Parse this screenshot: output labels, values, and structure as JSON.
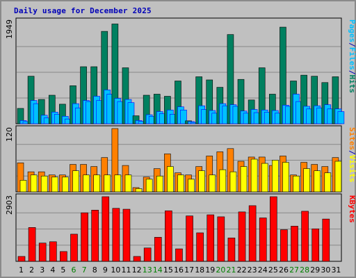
{
  "chart_data": {
    "title": "Daily usage for December 2025",
    "type": "bar",
    "days": [
      "1",
      "2",
      "3",
      "4",
      "5",
      "6",
      "7",
      "8",
      "9",
      "10",
      "11",
      "12",
      "13",
      "14",
      "15",
      "16",
      "17",
      "18",
      "19",
      "20",
      "21",
      "22",
      "23",
      "24",
      "25",
      "26",
      "27",
      "28",
      "29",
      "30",
      "31"
    ],
    "weekend_days": [
      "6",
      "7",
      "13",
      "14",
      "20",
      "21",
      "27",
      "28"
    ],
    "colors": {
      "hits": "#008060",
      "files": "#00c0ff",
      "pages": "#00c0ff",
      "visits": "#ff8000",
      "sites": "#ffff00",
      "kbytes": "#ff0000",
      "weekday_label": "#000000",
      "weekend_label": "#008000"
    },
    "panels": [
      {
        "name": "hits-files-pages",
        "max_label": "1949",
        "ymax": 1949,
        "axis_labels": [
          "Pages",
          "/",
          "Files",
          "/",
          "Hits"
        ],
        "axis_label_colors": [
          "#00c0ff",
          "#0000b8",
          "#00c0ff",
          "#0000b8",
          "#008060"
        ],
        "series": [
          {
            "name": "Hits",
            "values": [
              290,
              900,
              460,
              540,
              370,
              720,
              1080,
              1080,
              1750,
              1890,
              1060,
              150,
              540,
              560,
              520,
              810,
              55,
              890,
              830,
              690,
              1690,
              840,
              450,
              1060,
              560,
              1830,
              810,
              920,
              900,
              780,
              890
            ]
          },
          {
            "name": "Files",
            "values": [
              60,
              440,
              160,
              220,
              140,
              380,
              440,
              520,
              640,
              480,
              460,
              60,
              170,
              230,
              260,
              320,
              40,
              340,
              250,
              380,
              360,
              240,
              270,
              260,
              250,
              350,
              560,
              330,
              340,
              360,
              280
            ]
          },
          {
            "name": "Pages",
            "values": [
              40,
              380,
              110,
              180,
              90,
              300,
              420,
              440,
              560,
              420,
              400,
              45,
              140,
              190,
              180,
              260,
              25,
              270,
              200,
              340,
              330,
              200,
              210,
              220,
              200,
              330,
              420,
              280,
              300,
              280,
              230
            ]
          }
        ]
      },
      {
        "name": "visits-sites",
        "max_label": "120",
        "ymax": 120,
        "axis_labels": [
          "Sites",
          "/",
          "Visits"
        ],
        "axis_label_colors": [
          "#ff8000",
          "#0000b8",
          "#ffff00"
        ],
        "series": [
          {
            "name": "Visits",
            "values": [
              55,
              38,
              38,
              32,
              32,
              52,
              52,
              48,
              65,
              120,
              50,
              8,
              28,
              44,
              72,
              36,
              32,
              48,
              68,
              76,
              82,
              58,
              66,
              66,
              50,
              68,
              32,
              56,
              52,
              48,
              65
            ]
          },
          {
            "name": "Sites",
            "values": [
              22,
              32,
              30,
              28,
              28,
              40,
              32,
              32,
              32,
              32,
              32,
              6,
              24,
              30,
              48,
              32,
              24,
              40,
              32,
              42,
              38,
              48,
              62,
              54,
              60,
              56,
              30,
              44,
              40,
              36,
              58
            ]
          }
        ]
      },
      {
        "name": "kbytes",
        "max_label": "2903",
        "ymax": 2903,
        "axis_labels": [
          "KBytes"
        ],
        "axis_label_colors": [
          "#ff0000"
        ],
        "series": [
          {
            "name": "KBytes",
            "values": [
              220,
              1520,
              820,
              880,
              440,
              1220,
              2180,
              2300,
              2903,
              2380,
              2340,
              220,
              600,
              1080,
              2270,
              560,
              2040,
              1280,
              2090,
              2000,
              1050,
              2220,
              2500,
              1950,
              2903,
              1420,
              1580,
              2250,
              1460,
              1900,
              0
            ]
          }
        ]
      }
    ]
  }
}
